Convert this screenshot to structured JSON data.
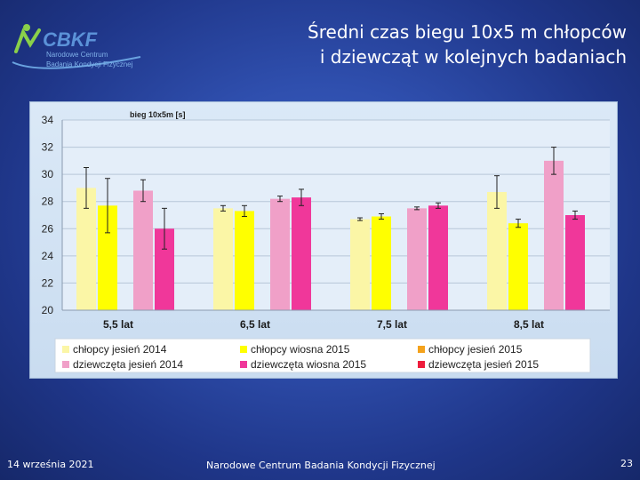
{
  "slide": {
    "title_line1": "Średni czas biegu 10x5 m chłopców",
    "title_line2": "i dziewcząt w kolejnych badaniach",
    "footer_date": "14 września 2021",
    "footer_center": "Narodowe Centrum Badania Kondycji Fizycznej",
    "page_number": "23"
  },
  "logo": {
    "name": "CBKF",
    "sub1": "Narodowe Centrum",
    "sub2": "Badania Kondycji Fizycznej"
  },
  "chart_data": {
    "type": "bar",
    "title": "bieg 10x5m [s]",
    "categories": [
      "5,5 lat",
      "6,5 lat",
      "7,5 lat",
      "8,5 lat"
    ],
    "ylim": [
      20,
      34
    ],
    "yticks": [
      20,
      22,
      24,
      26,
      28,
      30,
      32,
      34
    ],
    "grid": true,
    "legend_position": "bottom",
    "series": [
      {
        "name": "chłopcy jesień 2014",
        "color": "#fbf6a6",
        "values": [
          29.0,
          27.5,
          26.7,
          28.7
        ],
        "errors": [
          1.5,
          0.2,
          0.1,
          1.2
        ]
      },
      {
        "name": "chłopcy wiosna 2015",
        "color": "#ffff00",
        "values": [
          27.7,
          27.3,
          26.9,
          26.4
        ],
        "errors": [
          2.0,
          0.4,
          0.2,
          0.3
        ]
      },
      {
        "name": "chłopcy jesień 2015",
        "color": "#f4a21c",
        "values": [
          null,
          null,
          null,
          null
        ],
        "errors": [
          0,
          0,
          0,
          0
        ]
      },
      {
        "name": "dziewczęta jesień 2014",
        "color": "#f0a0c8",
        "values": [
          28.8,
          28.2,
          27.5,
          31.0
        ],
        "errors": [
          0.8,
          0.2,
          0.1,
          1.0
        ]
      },
      {
        "name": "dziewczęta wiosna 2015",
        "color": "#f0379a",
        "values": [
          26.0,
          28.3,
          27.7,
          27.0
        ],
        "errors": [
          1.5,
          0.6,
          0.2,
          0.3
        ]
      },
      {
        "name": "dziewczęta jesień 2015",
        "color": "#ee1c3c",
        "values": [
          null,
          null,
          null,
          null
        ],
        "errors": [
          0,
          0,
          0,
          0
        ]
      }
    ]
  }
}
